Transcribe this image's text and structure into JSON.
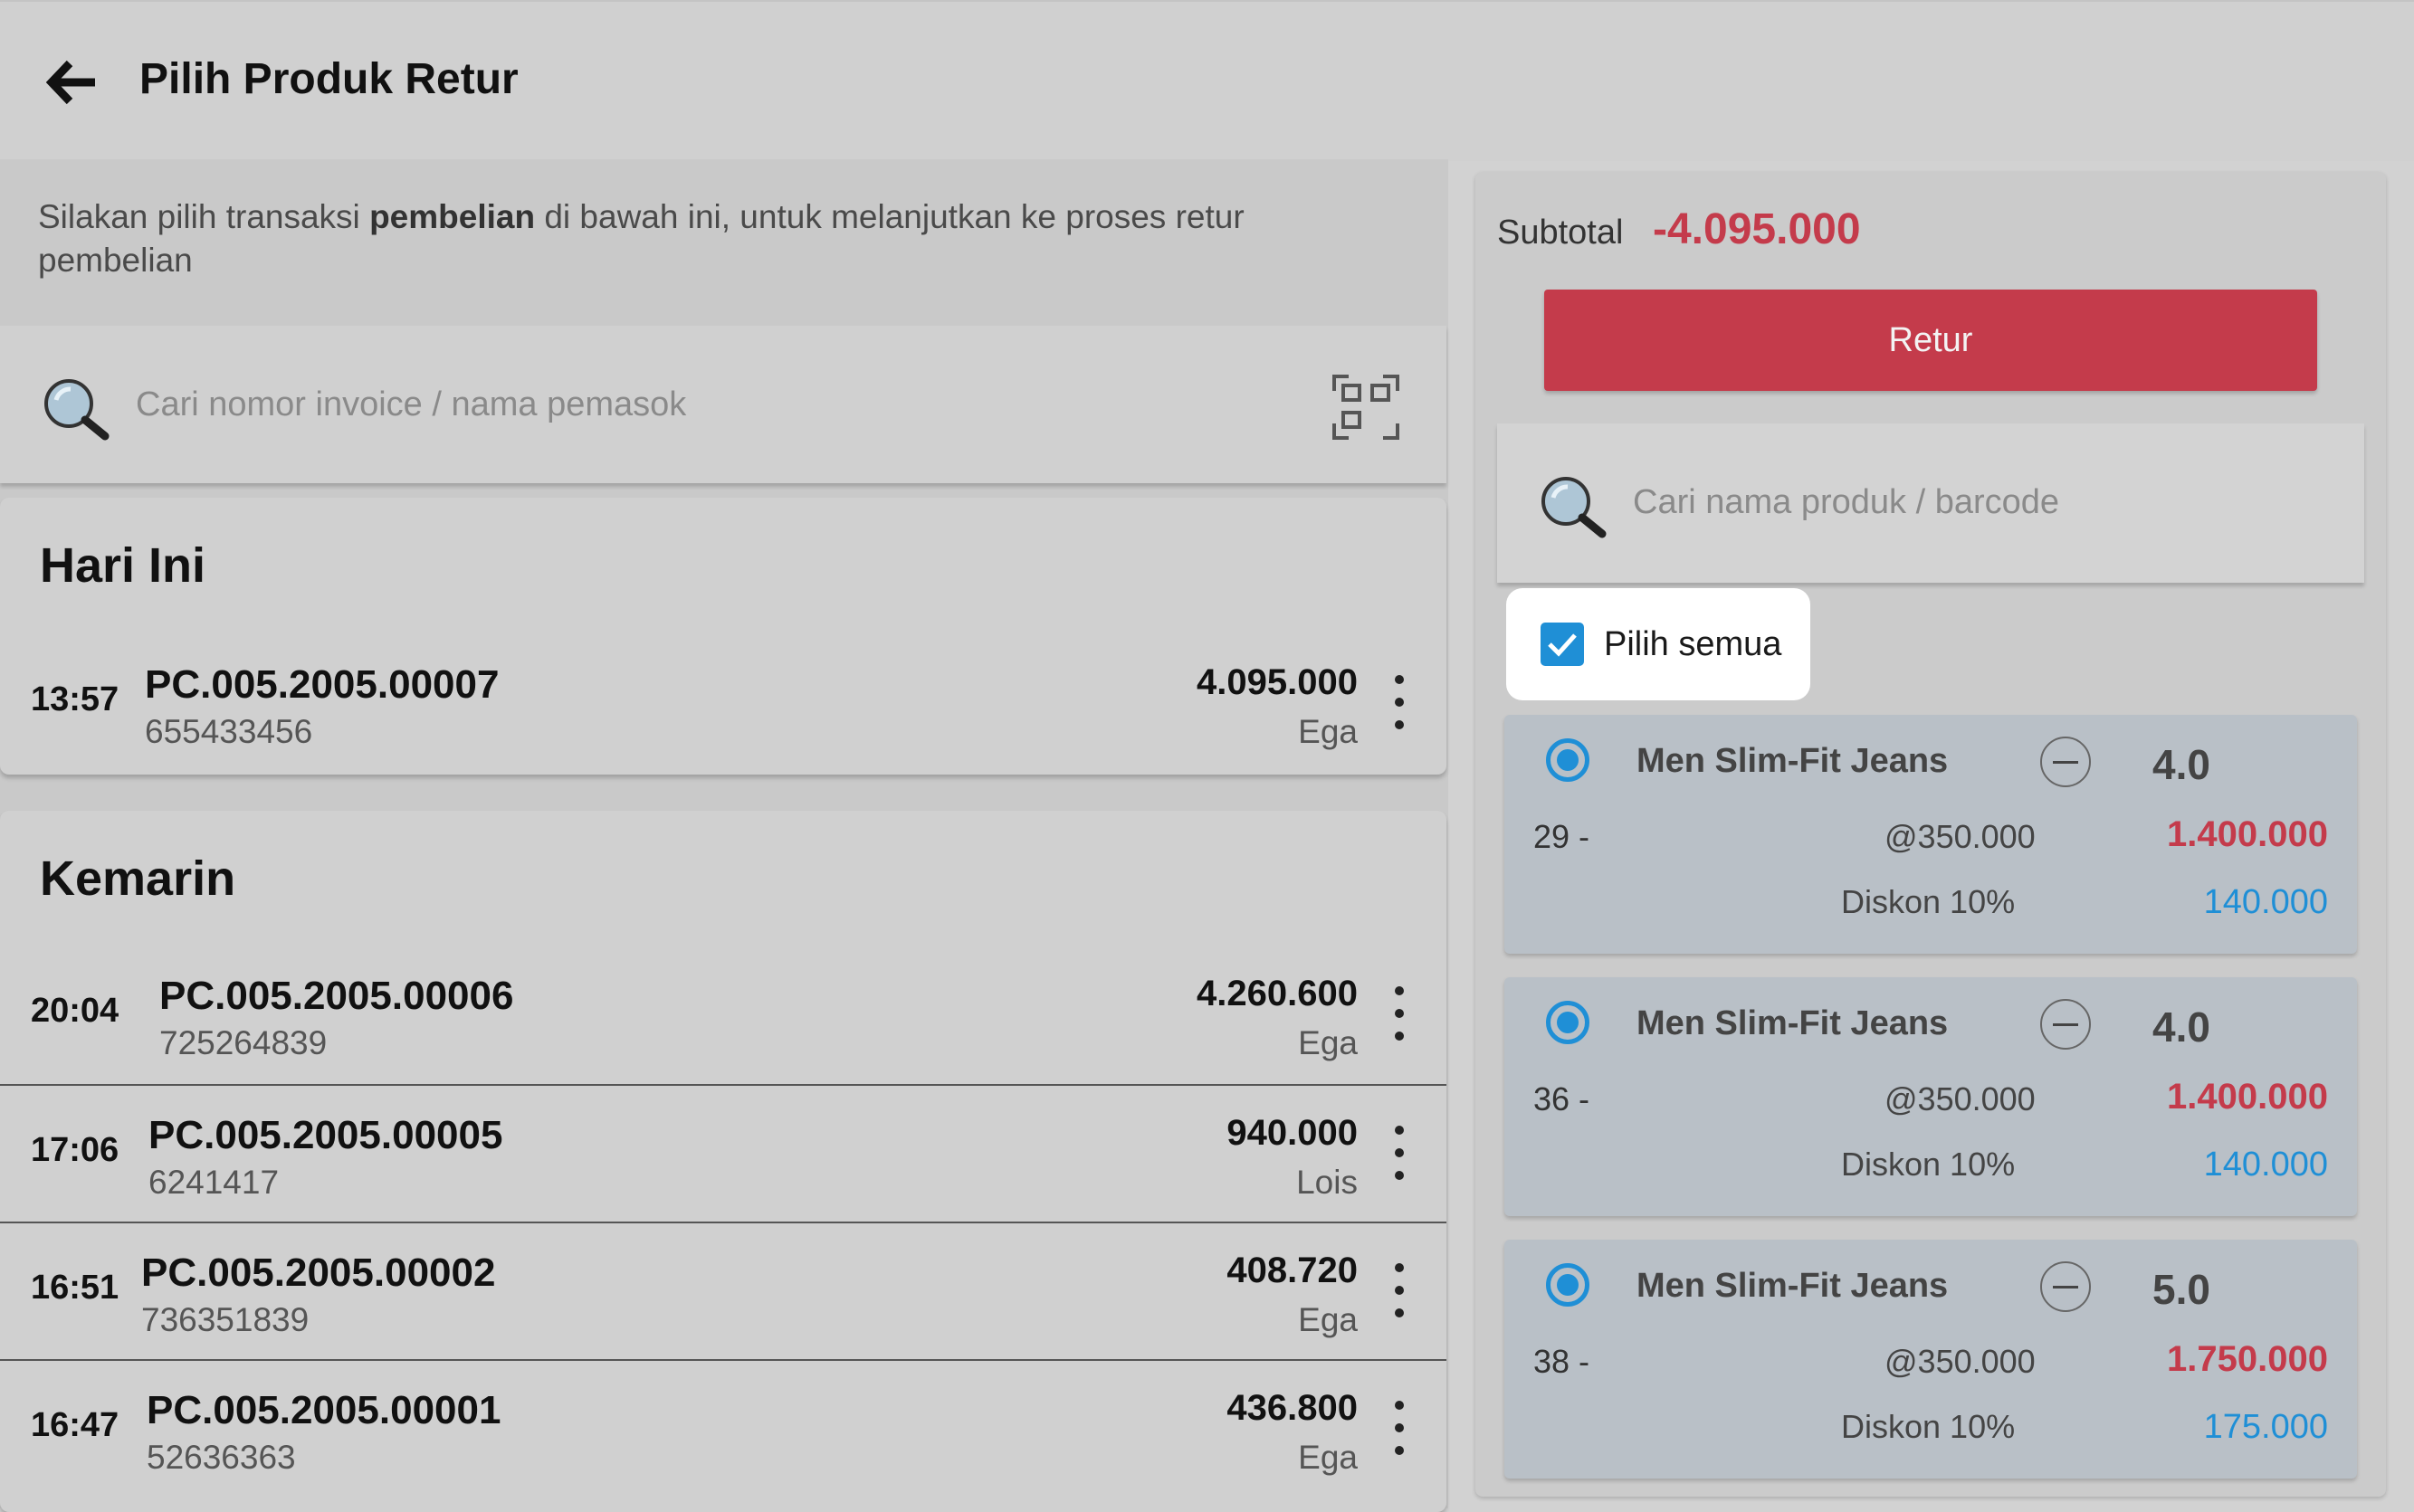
{
  "header": {
    "title": "Pilih Produk Retur"
  },
  "left": {
    "instruction": {
      "pre": "Silakan pilih transaksi ",
      "bold": "pembelian",
      "post": " di bawah ini, untuk melanjutkan ke proses retur pembelian"
    },
    "search": {
      "placeholder": "Cari nomor invoice / nama pemasok"
    },
    "groups": [
      {
        "title": "Hari Ini",
        "transactions": [
          {
            "time": "13:57",
            "invoice": "PC.005.2005.00007",
            "ref": "655433456",
            "amount": "4.095.000",
            "supplier": "Ega"
          }
        ]
      },
      {
        "title": "Kemarin",
        "transactions": [
          {
            "time": "20:04",
            "invoice": "PC.005.2005.00006",
            "ref": "725264839",
            "amount": "4.260.600",
            "supplier": "Ega"
          },
          {
            "time": "17:06",
            "invoice": "PC.005.2005.00005",
            "ref": "6241417",
            "amount": "940.000",
            "supplier": "Lois"
          },
          {
            "time": "16:51",
            "invoice": "PC.005.2005.00002",
            "ref": "736351839",
            "amount": "408.720",
            "supplier": "Ega"
          },
          {
            "time": "16:47",
            "invoice": "PC.005.2005.00001",
            "ref": "52636363",
            "amount": "436.800",
            "supplier": "Ega"
          }
        ]
      }
    ]
  },
  "right": {
    "subtotal_label": "Subtotal",
    "subtotal_value": "-4.095.000",
    "retur_label": "Retur",
    "search_placeholder": "Cari nama produk / barcode",
    "select_all_label": "Pilih semua",
    "select_all_checked": true,
    "products": [
      {
        "name": "Men Slim-Fit Jeans",
        "qty": "4.0",
        "size": "29 -",
        "unit_price": "@350.000",
        "total": "1.400.000",
        "discount_label": "Diskon 10%",
        "discount_value": "140.000",
        "selected": true
      },
      {
        "name": "Men Slim-Fit Jeans",
        "qty": "4.0",
        "size": "36 -",
        "unit_price": "@350.000",
        "total": "1.400.000",
        "discount_label": "Diskon 10%",
        "discount_value": "140.000",
        "selected": true
      },
      {
        "name": "Men Slim-Fit Jeans",
        "qty": "5.0",
        "size": "38 -",
        "unit_price": "@350.000",
        "total": "1.750.000",
        "discount_label": "Diskon 10%",
        "discount_value": "175.000",
        "selected": true
      }
    ]
  },
  "colors": {
    "accent_red": "#c43b4b",
    "accent_blue": "#1f8fd6",
    "product_card_bg": "#b9c0c7"
  },
  "icons": {
    "back": "arrow-left-icon",
    "search": "magnifier-icon",
    "scan": "barcode-scan-icon",
    "more": "more-vertical-icon",
    "check": "check-icon",
    "radio": "radio-selected-icon",
    "minus": "minus-circle-icon"
  }
}
